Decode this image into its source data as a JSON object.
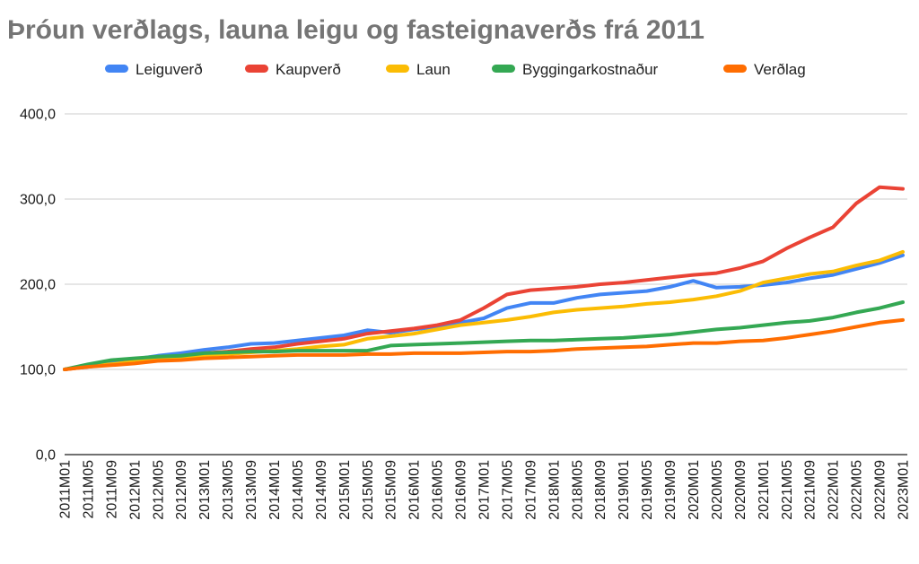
{
  "chart_data": {
    "type": "line",
    "title": "Þróun verðlags, launa leigu og fasteignaverðs frá 2011",
    "legend_position": "top",
    "grid": true,
    "ylim": [
      0,
      400
    ],
    "y_tick_values": [
      0,
      100,
      200,
      300,
      400
    ],
    "y_tick_labels": [
      "0,0",
      "100,0",
      "200,0",
      "300,0",
      "400,0"
    ],
    "x_labels": [
      "2011M01",
      "2011M05",
      "2011M09",
      "2012M01",
      "2012M05",
      "2012M09",
      "2013M01",
      "2013M05",
      "2013M09",
      "2014M01",
      "2014M05",
      "2014M09",
      "2015M01",
      "2015M05",
      "2015M09",
      "2016M01",
      "2016M05",
      "2016M09",
      "2017M01",
      "2017M05",
      "2017M09",
      "2018M01",
      "2018M05",
      "2018M09",
      "2019M01",
      "2019M05",
      "2019M09",
      "2020M01",
      "2020M05",
      "2020M09",
      "2021M01",
      "2021M05",
      "2021M09",
      "2022M01",
      "2022M05",
      "2022M09",
      "2023M01"
    ],
    "series": [
      {
        "name": "Leiguverð",
        "color": "#4285F4",
        "values": [
          100,
          104,
          108,
          112,
          116,
          119,
          123,
          126,
          130,
          131,
          134,
          137,
          140,
          146,
          143,
          147,
          150,
          155,
          160,
          172,
          178,
          178,
          184,
          188,
          190,
          192,
          197,
          204,
          196,
          197,
          199,
          202,
          207,
          211,
          218,
          225,
          234
        ]
      },
      {
        "name": "Kaupverð",
        "color": "#EA4335",
        "values": [
          100,
          103,
          106,
          109,
          113,
          116,
          119,
          121,
          124,
          126,
          130,
          133,
          136,
          142,
          145,
          148,
          152,
          158,
          172,
          188,
          193,
          195,
          197,
          200,
          202,
          205,
          208,
          211,
          213,
          219,
          227,
          242,
          255,
          267,
          295,
          314,
          312
        ]
      },
      {
        "name": "Laun",
        "color": "#FBBC04",
        "values": [
          100,
          104,
          106,
          109,
          112,
          114,
          117,
          118,
          120,
          122,
          124,
          127,
          129,
          136,
          139,
          142,
          147,
          152,
          155,
          158,
          162,
          167,
          170,
          172,
          174,
          177,
          179,
          182,
          186,
          192,
          202,
          207,
          212,
          215,
          222,
          228,
          238
        ]
      },
      {
        "name": "Byggingarkostnaður",
        "color": "#34A853",
        "values": [
          100,
          106,
          111,
          113,
          115,
          116,
          119,
          120,
          121,
          121,
          122,
          122,
          122,
          122,
          128,
          129,
          130,
          131,
          132,
          133,
          134,
          134,
          135,
          136,
          137,
          139,
          141,
          144,
          147,
          149,
          152,
          155,
          157,
          161,
          167,
          172,
          179
        ]
      },
      {
        "name": "Verðlag",
        "color": "#FF6D01",
        "values": [
          100,
          103,
          105,
          107,
          110,
          111,
          113,
          114,
          115,
          116,
          117,
          117,
          117,
          118,
          118,
          119,
          119,
          119,
          120,
          121,
          121,
          122,
          124,
          125,
          126,
          127,
          129,
          131,
          131,
          133,
          134,
          137,
          141,
          145,
          150,
          155,
          158
        ]
      }
    ]
  },
  "colors": {
    "title": "#757575",
    "axis_text": "#1a1a1a",
    "gridline": "#cccccc",
    "axis_line": "#424242",
    "background": "#ffffff"
  }
}
